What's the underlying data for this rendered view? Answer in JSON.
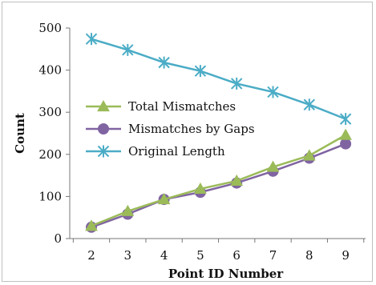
{
  "chart_data": {
    "type": "line",
    "title": "",
    "xlabel": "Point ID Number",
    "ylabel": "Count",
    "x": [
      2,
      3,
      4,
      5,
      6,
      7,
      8,
      9
    ],
    "ylim": [
      0,
      500
    ],
    "yticks": [
      0,
      100,
      200,
      300,
      400,
      500
    ],
    "grid": false,
    "legend_position": "center-left",
    "series": [
      {
        "name": "Total Mismatches",
        "values": [
          30,
          65,
          93,
          118,
          137,
          170,
          197,
          246
        ],
        "color": "#9bbb59",
        "marker": "triangle"
      },
      {
        "name": "Mismatches by Gaps",
        "values": [
          27,
          58,
          93,
          110,
          132,
          160,
          191,
          225
        ],
        "color": "#8064a2",
        "marker": "circle"
      },
      {
        "name": "Original Length",
        "values": [
          474,
          448,
          418,
          398,
          368,
          348,
          318,
          284
        ],
        "color": "#4bacc6",
        "marker": "asterisk"
      }
    ]
  }
}
